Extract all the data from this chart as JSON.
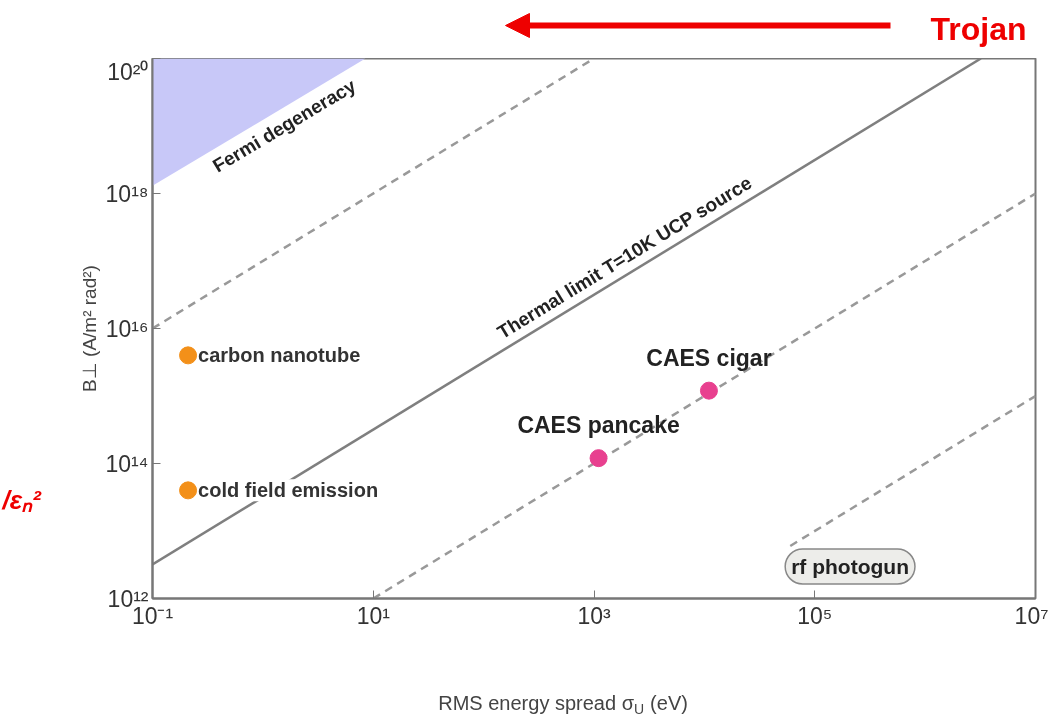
{
  "chart_data": {
    "type": "line",
    "xlabel": "RMS energy spread σ$_{U}$ (eV)",
    "ylabel": "B⊥ (A/m² rad²)",
    "log": "xy",
    "xlim": [
      0.1,
      10000000
    ],
    "ylim": [
      1000000000000.0,
      1e+20
    ],
    "xticks": [
      {
        "value": 0.1,
        "label": "10⁻¹"
      },
      {
        "value": 10,
        "label": "10¹"
      },
      {
        "value": 1000,
        "label": "10³"
      },
      {
        "value": 100000,
        "label": "10⁵"
      },
      {
        "value": 10000000,
        "label": "10⁷"
      }
    ],
    "yticks": [
      {
        "value": 1000000000000.0,
        "label": "10¹²"
      },
      {
        "value": 100000000000000.0,
        "label": "10¹⁴"
      },
      {
        "value": 1e+16,
        "label": "10¹⁶"
      },
      {
        "value": 1e+18,
        "label": "10¹⁸"
      },
      {
        "value": 1e+20,
        "label": "10²⁰"
      }
    ],
    "series": [
      {
        "name": "Fermi degeneracy",
        "type": "area",
        "color": "#c8c8f8",
        "x": [
          0.1,
          8.5
        ],
        "values": [
          1.3e+18,
          1e+20
        ]
      },
      {
        "name": "Thermal limit T=10K UCP source",
        "type": "line",
        "line_style": "solid",
        "color": "#7f7f7f",
        "x": [
          0.1,
          3200000
        ],
        "values": [
          3200000000000.0,
          1e+20
        ]
      },
      {
        "type": "line",
        "line_style": "dashed",
        "color": "#999999",
        "x": [
          0.1,
          1000
        ],
        "values": [
          1e+16,
          1e+20
        ]
      },
      {
        "type": "line",
        "line_style": "dashed",
        "color": "#999999",
        "x": [
          10,
          10000000
        ],
        "values": [
          1000000000000.0,
          1e+18
        ]
      },
      {
        "type": "line",
        "line_style": "dashed",
        "color": "#999999",
        "x": [
          60000,
          10000000
        ],
        "values": [
          6000000000000.0,
          1000000000000000.0
        ]
      },
      {
        "type": "scatter",
        "marker": "circle",
        "color": "#f39019",
        "x": [
          0.21,
          0.21
        ],
        "values": [
          4000000000000000.0,
          40000000000000.0
        ]
      },
      {
        "type": "scatter",
        "marker": "circle",
        "color": "#e8408f",
        "x": [
          1100,
          11000
        ],
        "values": [
          120000000000000.0,
          1200000000000000.0
        ]
      }
    ],
    "annotations": [
      "Trojan",
      "/εₙ²",
      {
        "text": "carbon nanotube",
        "x": 0.21,
        "y": 4000000000000000.0
      },
      {
        "text": "cold field emission",
        "x": 0.21,
        "y": 40000000000000.0
      },
      {
        "text": "CAES pancake",
        "x": 1100,
        "y": 120000000000000.0
      },
      {
        "text": "CAES cigar",
        "x": 11000,
        "y": 1200000000000000.0
      },
      "rf photogun"
    ]
  }
}
